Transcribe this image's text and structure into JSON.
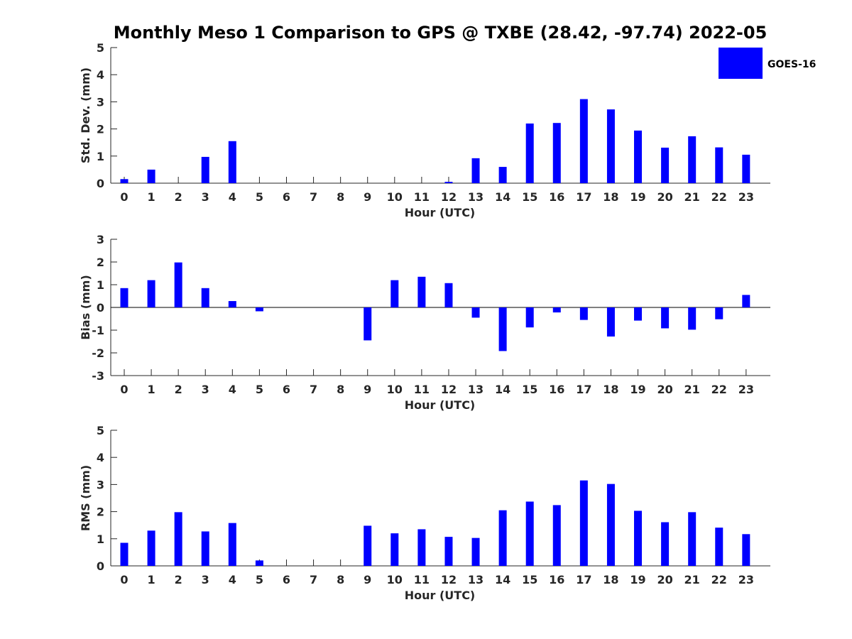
{
  "chart_data": {
    "title": "Monthly Meso 1 Comparison to GPS @ TXBE (28.42, -97.74) 2022-05",
    "legend": {
      "label": "GOES-16",
      "placement": "top-right",
      "color": "#0000ff"
    },
    "bar_color": "#0000ff",
    "panels": [
      {
        "type": "bar",
        "ylabel": "Std. Dev. (mm)",
        "xlabel": "Hour (UTC)",
        "ylim": [
          0,
          5
        ],
        "yticks": [
          0,
          1,
          2,
          3,
          4,
          5
        ],
        "categories": [
          "0",
          "1",
          "2",
          "3",
          "4",
          "5",
          "6",
          "7",
          "8",
          "9",
          "10",
          "11",
          "12",
          "13",
          "14",
          "15",
          "16",
          "17",
          "18",
          "19",
          "20",
          "21",
          "22",
          "23"
        ],
        "series": [
          {
            "name": "GOES-16",
            "values": [
              0.15,
              0.5,
              null,
              0.97,
              1.55,
              null,
              null,
              null,
              null,
              null,
              null,
              null,
              0.05,
              0.92,
              0.6,
              2.2,
              2.22,
              3.1,
              2.72,
              1.94,
              1.31,
              1.73,
              1.32,
              1.05
            ]
          }
        ],
        "zero_line": false
      },
      {
        "type": "bar",
        "ylabel": "Bias (mm)",
        "xlabel": "Hour (UTC)",
        "ylim": [
          -3,
          3
        ],
        "yticks": [
          -3,
          -2,
          -1,
          0,
          1,
          2,
          3
        ],
        "categories": [
          "0",
          "1",
          "2",
          "3",
          "4",
          "5",
          "6",
          "7",
          "8",
          "9",
          "10",
          "11",
          "12",
          "13",
          "14",
          "15",
          "16",
          "17",
          "18",
          "19",
          "20",
          "21",
          "22",
          "23"
        ],
        "series": [
          {
            "name": "GOES-16",
            "values": [
              0.85,
              1.2,
              1.98,
              0.85,
              0.28,
              -0.17,
              null,
              null,
              null,
              -1.45,
              1.2,
              1.35,
              1.07,
              -0.45,
              -1.92,
              -0.88,
              -0.22,
              -0.55,
              -1.28,
              -0.58,
              -0.92,
              -0.98,
              -0.52,
              0.55
            ]
          }
        ],
        "zero_line": true
      },
      {
        "type": "bar",
        "ylabel": "RMS (mm)",
        "xlabel": "Hour (UTC)",
        "ylim": [
          0,
          5
        ],
        "yticks": [
          0,
          1,
          2,
          3,
          4,
          5
        ],
        "categories": [
          "0",
          "1",
          "2",
          "3",
          "4",
          "5",
          "6",
          "7",
          "8",
          "9",
          "10",
          "11",
          "12",
          "13",
          "14",
          "15",
          "16",
          "17",
          "18",
          "19",
          "20",
          "21",
          "22",
          "23"
        ],
        "series": [
          {
            "name": "GOES-16",
            "values": [
              0.85,
              1.3,
              1.98,
              1.27,
              1.58,
              0.2,
              null,
              null,
              null,
              1.48,
              1.2,
              1.35,
              1.07,
              1.03,
              2.05,
              2.37,
              2.24,
              3.15,
              3.02,
              2.03,
              1.61,
              1.98,
              1.41,
              1.17
            ]
          }
        ],
        "zero_line": false
      }
    ]
  }
}
